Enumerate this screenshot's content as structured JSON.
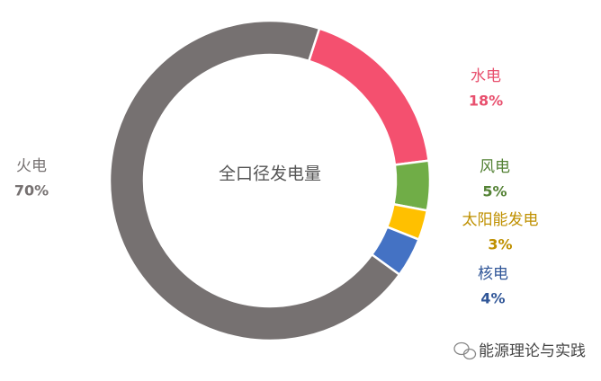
{
  "chart_data": {
    "type": "donut",
    "center_label": "全口径发电量",
    "categories": [
      "水电",
      "风电",
      "太阳能发电",
      "核电",
      "火电"
    ],
    "values": [
      18,
      5,
      3,
      4,
      70
    ],
    "value_labels": [
      "18%",
      "5%",
      "3%",
      "4%",
      "70%"
    ],
    "colors": [
      "#f4506f",
      "#70ad47",
      "#ffc000",
      "#4472c4",
      "#767171"
    ],
    "label_colors": [
      "#e8506e",
      "#548235",
      "#bf9000",
      "#2f5597",
      "#767171"
    ]
  },
  "watermark": "能源理论与实践"
}
